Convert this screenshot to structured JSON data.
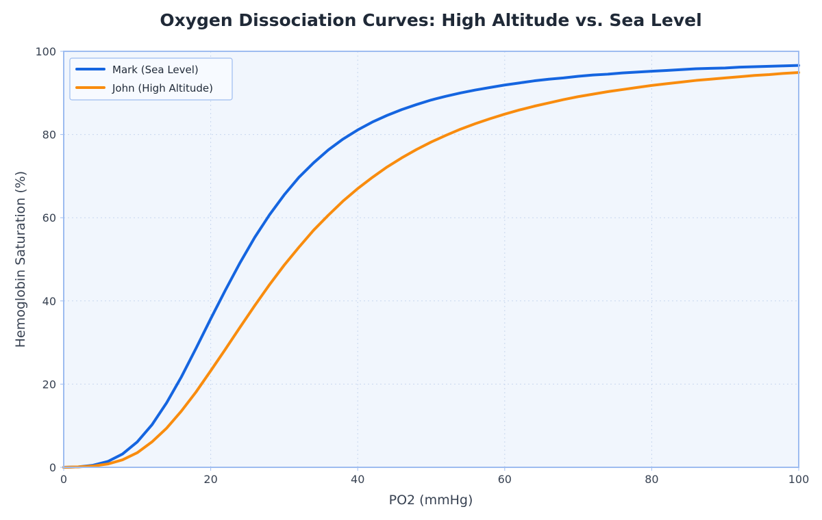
{
  "chart_data": {
    "type": "line",
    "title": "Oxygen Dissociation Curves: High Altitude vs. Sea Level",
    "xlabel": "PO2 (mmHg)",
    "ylabel": "Hemoglobin Saturation (%)",
    "xlim": [
      0,
      100
    ],
    "ylim": [
      0,
      100
    ],
    "xticks": [
      0,
      20,
      40,
      60,
      80,
      100
    ],
    "yticks": [
      0,
      20,
      40,
      60,
      80,
      100
    ],
    "grid": true,
    "legend_position": "top-left",
    "background_color": "#f1f6fd",
    "frame_color": "#9dbcf0",
    "x": [
      0,
      2,
      4,
      6,
      8,
      10,
      12,
      14,
      16,
      18,
      20,
      22,
      24,
      26,
      28,
      30,
      32,
      34,
      36,
      38,
      40,
      42,
      44,
      46,
      48,
      50,
      52,
      54,
      56,
      58,
      60,
      62,
      64,
      66,
      68,
      70,
      72,
      74,
      76,
      78,
      80,
      82,
      84,
      86,
      88,
      90,
      92,
      94,
      96,
      98,
      100
    ],
    "series": [
      {
        "name": "Mark (Sea Level)",
        "color": "#1565e0",
        "values": [
          0,
          0.1,
          0.5,
          1.4,
          3.2,
          6.1,
          10.2,
          15.5,
          21.7,
          28.6,
          35.7,
          42.6,
          49.2,
          55.3,
          60.7,
          65.5,
          69.7,
          73.2,
          76.3,
          78.9,
          81.1,
          83.0,
          84.6,
          86.0,
          87.2,
          88.3,
          89.2,
          90.0,
          90.7,
          91.3,
          91.9,
          92.4,
          92.9,
          93.3,
          93.6,
          94.0,
          94.3,
          94.5,
          94.8,
          95.0,
          95.2,
          95.4,
          95.6,
          95.8,
          95.9,
          96.0,
          96.2,
          96.3,
          96.4,
          96.5,
          96.6
        ]
      },
      {
        "name": "John (High Altitude)",
        "color": "#f98c0e",
        "values": [
          0,
          0.1,
          0.3,
          0.8,
          1.8,
          3.5,
          6.1,
          9.4,
          13.5,
          18.1,
          23.2,
          28.4,
          33.7,
          38.9,
          43.9,
          48.6,
          52.9,
          57.0,
          60.6,
          64.0,
          67.0,
          69.7,
          72.2,
          74.4,
          76.4,
          78.2,
          79.8,
          81.3,
          82.6,
          83.8,
          84.9,
          85.9,
          86.8,
          87.6,
          88.4,
          89.1,
          89.7,
          90.3,
          90.8,
          91.3,
          91.8,
          92.2,
          92.6,
          93.0,
          93.3,
          93.6,
          93.9,
          94.2,
          94.4,
          94.7,
          94.9
        ]
      }
    ]
  }
}
